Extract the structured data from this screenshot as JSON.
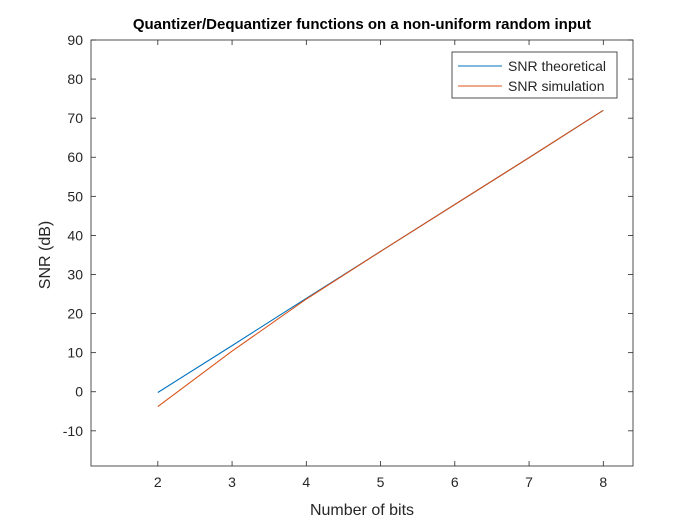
{
  "chart_data": {
    "type": "line",
    "title": "Quantizer/Dequantizer functions on a non-uniform random input",
    "xlabel": "Number of bits",
    "ylabel": "SNR (dB)",
    "xlim": [
      1.1,
      8.4
    ],
    "ylim": [
      -19,
      90
    ],
    "xticks": [
      2,
      3,
      4,
      5,
      6,
      7,
      8
    ],
    "yticks": [
      -10,
      0,
      10,
      20,
      30,
      40,
      50,
      60,
      70,
      80,
      90
    ],
    "grid": false,
    "legend_position": "top-right",
    "series": [
      {
        "name": "SNR theoretical",
        "color": "#0072bd",
        "x": [
          2,
          3,
          4,
          5,
          6,
          7,
          8
        ],
        "y": [
          -0.2,
          11.8,
          23.9,
          35.9,
          47.9,
          59.9,
          72.0
        ]
      },
      {
        "name": "SNR simulation",
        "color": "#d95319",
        "x": [
          2,
          3,
          4,
          5,
          6,
          7,
          8
        ],
        "y": [
          -3.8,
          10.4,
          23.7,
          35.9,
          47.9,
          59.9,
          72.0
        ]
      }
    ]
  }
}
